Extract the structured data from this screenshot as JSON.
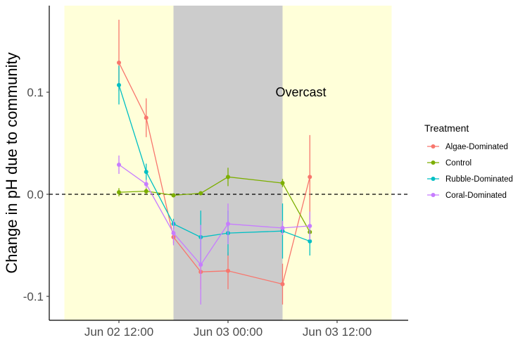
{
  "chart_data": {
    "type": "line",
    "title": "",
    "xlabel": "",
    "ylabel": "Change in pH due to community",
    "x": [
      "2024-06-02 12:00",
      "2024-06-02 18:00",
      "2024-06-03 00:00",
      "2024-06-03 06:00",
      "2024-06-03 12:00",
      "2024-06-03 18:00"
    ],
    "x_tick_labels": [
      "Jun 02 12:00",
      "Jun 03 00:00",
      "Jun 03 12:00"
    ],
    "x_tick_times": [
      "2024-06-02 12:00",
      "2024-06-03 00:00",
      "2024-06-03 12:00"
    ],
    "y_ticks": [
      0.1,
      0.0,
      -0.1
    ],
    "y_tick_labels": [
      "0.1",
      "0.0",
      "-0.1"
    ],
    "grid": false,
    "reference_line": {
      "y": 0,
      "style": "dashed"
    },
    "background_bands": [
      {
        "start": "2024-06-02 06:00",
        "end": "2024-06-02 18:00",
        "color": "#ffffd9"
      },
      {
        "start": "2024-06-02 18:00",
        "end": "2024-06-03 06:00",
        "color": "#cccccc"
      },
      {
        "start": "2024-06-03 06:00",
        "end": "2024-06-03 18:00",
        "color": "#ffffd9"
      }
    ],
    "annotations": [
      {
        "text": "Overcast",
        "x": "2024-06-03 06:00",
        "y": 0.1
      }
    ],
    "legend": {
      "title": "Treatment",
      "position": "right"
    },
    "series": [
      {
        "name": "Algae-Dominated",
        "color": "#f8766d",
        "points": [
          {
            "t": "2024-06-02 12:00",
            "y": 0.129,
            "lo": 0.101,
            "hi": 0.171
          },
          {
            "t": "2024-06-02 15:00",
            "y": 0.075,
            "lo": 0.056,
            "hi": 0.094
          },
          {
            "t": "2024-06-02 18:00",
            "y": -0.042,
            "lo": -0.048,
            "hi": -0.036
          },
          {
            "t": "2024-06-02 21:00",
            "y": -0.076,
            "lo": -0.093,
            "hi": -0.059
          },
          {
            "t": "2024-06-03 00:00",
            "y": -0.075,
            "lo": -0.093,
            "hi": -0.057
          },
          {
            "t": "2024-06-03 06:00",
            "y": -0.088,
            "lo": -0.108,
            "hi": -0.068
          },
          {
            "t": "2024-06-03 09:00",
            "y": 0.017,
            "lo": -0.025,
            "hi": 0.058
          }
        ]
      },
      {
        "name": "Control",
        "color": "#7cae00",
        "points": [
          {
            "t": "2024-06-02 12:00",
            "y": 0.002,
            "lo": -0.002,
            "hi": 0.006
          },
          {
            "t": "2024-06-02 15:00",
            "y": 0.003,
            "lo": 0.0,
            "hi": 0.006
          },
          {
            "t": "2024-06-02 18:00",
            "y": -0.001,
            "lo": -0.003,
            "hi": 0.001
          },
          {
            "t": "2024-06-02 21:00",
            "y": 0.001,
            "lo": -0.001,
            "hi": 0.003
          },
          {
            "t": "2024-06-03 00:00",
            "y": 0.017,
            "lo": 0.008,
            "hi": 0.026
          },
          {
            "t": "2024-06-03 06:00",
            "y": 0.011,
            "lo": 0.007,
            "hi": 0.015
          },
          {
            "t": "2024-06-03 09:00",
            "y": -0.037,
            "lo": -0.043,
            "hi": -0.031
          }
        ]
      },
      {
        "name": "Rubble-Dominated",
        "color": "#00bfc4",
        "points": [
          {
            "t": "2024-06-02 12:00",
            "y": 0.107,
            "lo": 0.088,
            "hi": 0.126
          },
          {
            "t": "2024-06-02 15:00",
            "y": 0.022,
            "lo": 0.014,
            "hi": 0.03
          },
          {
            "t": "2024-06-02 18:00",
            "y": -0.029,
            "lo": -0.034,
            "hi": -0.024
          },
          {
            "t": "2024-06-02 21:00",
            "y": -0.042,
            "lo": -0.068,
            "hi": -0.016
          },
          {
            "t": "2024-06-03 00:00",
            "y": -0.038,
            "lo": -0.06,
            "hi": -0.016
          },
          {
            "t": "2024-06-03 06:00",
            "y": -0.036,
            "lo": -0.063,
            "hi": -0.009
          },
          {
            "t": "2024-06-03 09:00",
            "y": -0.046,
            "lo": -0.06,
            "hi": -0.032
          }
        ]
      },
      {
        "name": "Coral-Dominated",
        "color": "#c77cff",
        "points": [
          {
            "t": "2024-06-02 12:00",
            "y": 0.029,
            "lo": 0.02,
            "hi": 0.038
          },
          {
            "t": "2024-06-02 15:00",
            "y": 0.01,
            "lo": 0.006,
            "hi": 0.014
          },
          {
            "t": "2024-06-02 18:00",
            "y": -0.038,
            "lo": -0.05,
            "hi": -0.026
          },
          {
            "t": "2024-06-02 21:00",
            "y": -0.069,
            "lo": -0.108,
            "hi": -0.03
          },
          {
            "t": "2024-06-03 00:00",
            "y": -0.029,
            "lo": -0.049,
            "hi": -0.009
          },
          {
            "t": "2024-06-03 06:00",
            "y": -0.033,
            "lo": -0.04,
            "hi": -0.026
          },
          {
            "t": "2024-06-03 09:00",
            "y": -0.031,
            "lo": -0.045,
            "hi": -0.017
          }
        ]
      }
    ]
  }
}
